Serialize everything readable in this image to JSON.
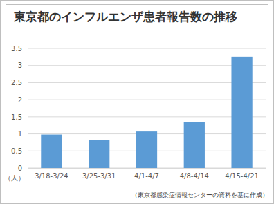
{
  "chart_data": {
    "type": "bar",
    "title": "東京都のインフルエンザ患者報告数の推移",
    "categories": [
      "3/18-3/24",
      "3/25-3/31",
      "4/1-4/7",
      "4/8-4/14",
      "4/15-4/21"
    ],
    "values": [
      0.98,
      0.82,
      1.07,
      1.35,
      3.26
    ],
    "color": "#5b9bd5",
    "ylim": [
      0,
      3.5
    ],
    "yticks": [
      0,
      0.5,
      1,
      1.5,
      2,
      2.5,
      3,
      3.5
    ],
    "grid": true,
    "ylabel": "（人）",
    "source": "（東京都感染症情報センターの資料を基に作成）"
  }
}
